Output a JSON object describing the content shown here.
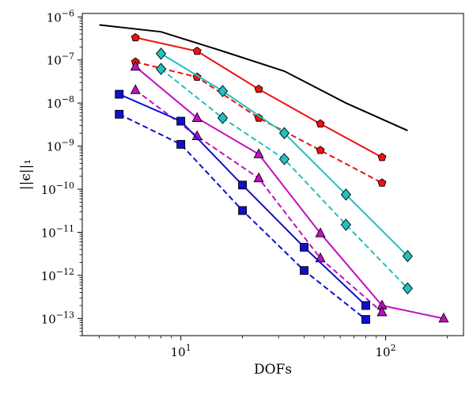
{
  "chart_data": {
    "type": "line",
    "xlabel": "DOFs",
    "ylabel": "||ϵ||₁",
    "x_scale": "log",
    "y_scale": "log",
    "xlim": [
      3.3,
      240
    ],
    "ylim": [
      4e-14,
      1.2e-06
    ],
    "grid": false,
    "legend": "none",
    "x_ticks": [
      {
        "value": 10,
        "base": "10",
        "exp": "1"
      },
      {
        "value": 100,
        "base": "10",
        "exp": "2"
      }
    ],
    "y_ticks": [
      {
        "value": 1e-06,
        "base": "10",
        "exp": "−6"
      },
      {
        "value": 1e-07,
        "base": "10",
        "exp": "−7"
      },
      {
        "value": 1e-08,
        "base": "10",
        "exp": "−8"
      },
      {
        "value": 1e-09,
        "base": "10",
        "exp": "−9"
      },
      {
        "value": 1e-10,
        "base": "10",
        "exp": "−10"
      },
      {
        "value": 1e-11,
        "base": "10",
        "exp": "−11"
      },
      {
        "value": 1e-12,
        "base": "10",
        "exp": "−12"
      },
      {
        "value": 1e-13,
        "base": "10",
        "exp": "−13"
      }
    ],
    "series": [
      {
        "color": "#000000",
        "linestyle": "solid",
        "marker": "none",
        "x": [
          4,
          8,
          16,
          32,
          64,
          128
        ],
        "y": [
          6.5e-07,
          4.5e-07,
          1.6e-07,
          5.5e-08,
          1e-08,
          2.3e-09
        ]
      },
      {
        "color": "#ee1111",
        "linestyle": "solid",
        "marker": "pentagon",
        "x": [
          6,
          12,
          24,
          48,
          96
        ],
        "y": [
          3.3e-07,
          1.6e-07,
          2.1e-08,
          3.3e-09,
          5.5e-10
        ]
      },
      {
        "color": "#ee1111",
        "linestyle": "dashed",
        "marker": "pentagon",
        "x": [
          6,
          12,
          24,
          48,
          96
        ],
        "y": [
          9e-08,
          4e-08,
          4.5e-09,
          8e-10,
          1.4e-10
        ]
      },
      {
        "color": "#22c0c0",
        "linestyle": "solid",
        "marker": "diamond",
        "x": [
          8,
          16,
          32,
          64,
          128
        ],
        "y": [
          1.4e-07,
          1.9e-08,
          2e-09,
          7.5e-11,
          2.8e-12
        ]
      },
      {
        "color": "#22c0c0",
        "linestyle": "dashed",
        "marker": "diamond",
        "x": [
          8,
          16,
          32,
          64,
          128
        ],
        "y": [
          6.2e-08,
          4.5e-09,
          5e-10,
          1.5e-11,
          5e-13
        ]
      },
      {
        "color": "#c010c0",
        "linestyle": "solid",
        "marker": "triangle",
        "x": [
          6,
          12,
          24,
          48,
          96,
          192
        ],
        "y": [
          7e-08,
          4.5e-09,
          6.5e-10,
          9.5e-12,
          2e-13,
          1e-13
        ]
      },
      {
        "color": "#c010c0",
        "linestyle": "dashed",
        "marker": "triangle",
        "x": [
          6,
          12,
          24,
          48,
          96
        ],
        "y": [
          2e-08,
          1.7e-09,
          1.8e-10,
          2.5e-12,
          1.4e-13
        ]
      },
      {
        "color": "#1010cc",
        "linestyle": "solid",
        "marker": "square",
        "x": [
          5,
          10,
          20,
          40,
          80
        ],
        "y": [
          1.6e-08,
          3.8e-09,
          1.25e-10,
          4.5e-12,
          2e-13
        ]
      },
      {
        "color": "#1010cc",
        "linestyle": "dashed",
        "marker": "square",
        "x": [
          5,
          10,
          20,
          40,
          80
        ],
        "y": [
          5.5e-09,
          1.1e-09,
          3.2e-11,
          1.3e-12,
          9.5e-14
        ]
      }
    ]
  }
}
